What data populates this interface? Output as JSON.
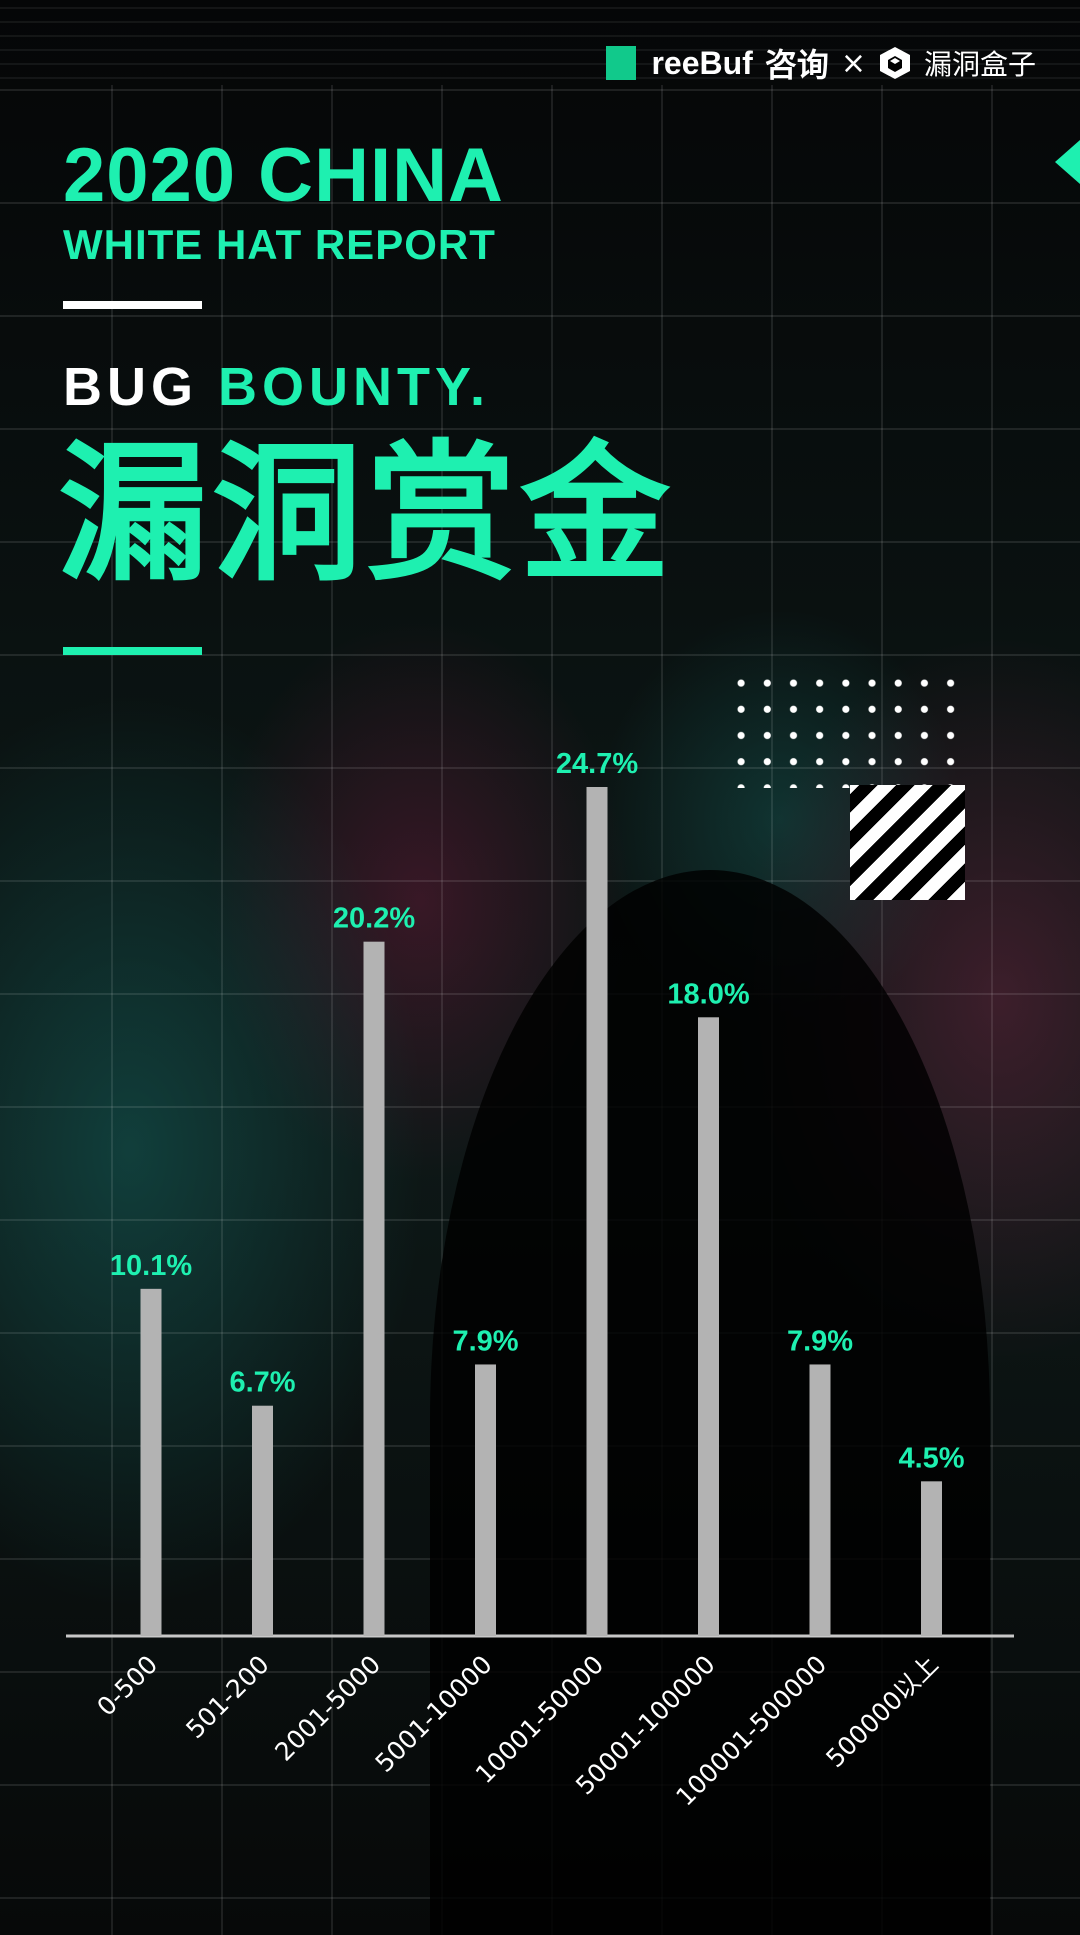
{
  "header": {
    "brand1": "reeBuf",
    "brand1_suffix": "咨询",
    "times": "×",
    "brand2": "漏洞盒子"
  },
  "titles": {
    "line1": "2020 CHINA",
    "line2": "WHITE HAT REPORT",
    "bug_white": "BUG ",
    "bug_green": "BOUNTY.",
    "cn_title": "漏洞赏金"
  },
  "colors": {
    "accent": "#1ef0b0",
    "bar": "#b3b3b3",
    "background": "#000000"
  },
  "chart_data": {
    "type": "bar",
    "categories": [
      "0-500",
      "501-200",
      "2001-5000",
      "5001-10000",
      "10001-50000",
      "50001-100000",
      "100001-500000",
      "500000以上"
    ],
    "values": [
      10.1,
      6.7,
      20.2,
      7.9,
      24.7,
      18.0,
      7.9,
      4.5
    ],
    "labels": [
      "10.1%",
      "6.7%",
      "20.2%",
      "7.9%",
      "24.7%",
      "18.0%",
      "7.9%",
      "4.5%"
    ],
    "unit": "%",
    "ylim": [
      0,
      30
    ],
    "grid": false,
    "legend": "none"
  }
}
